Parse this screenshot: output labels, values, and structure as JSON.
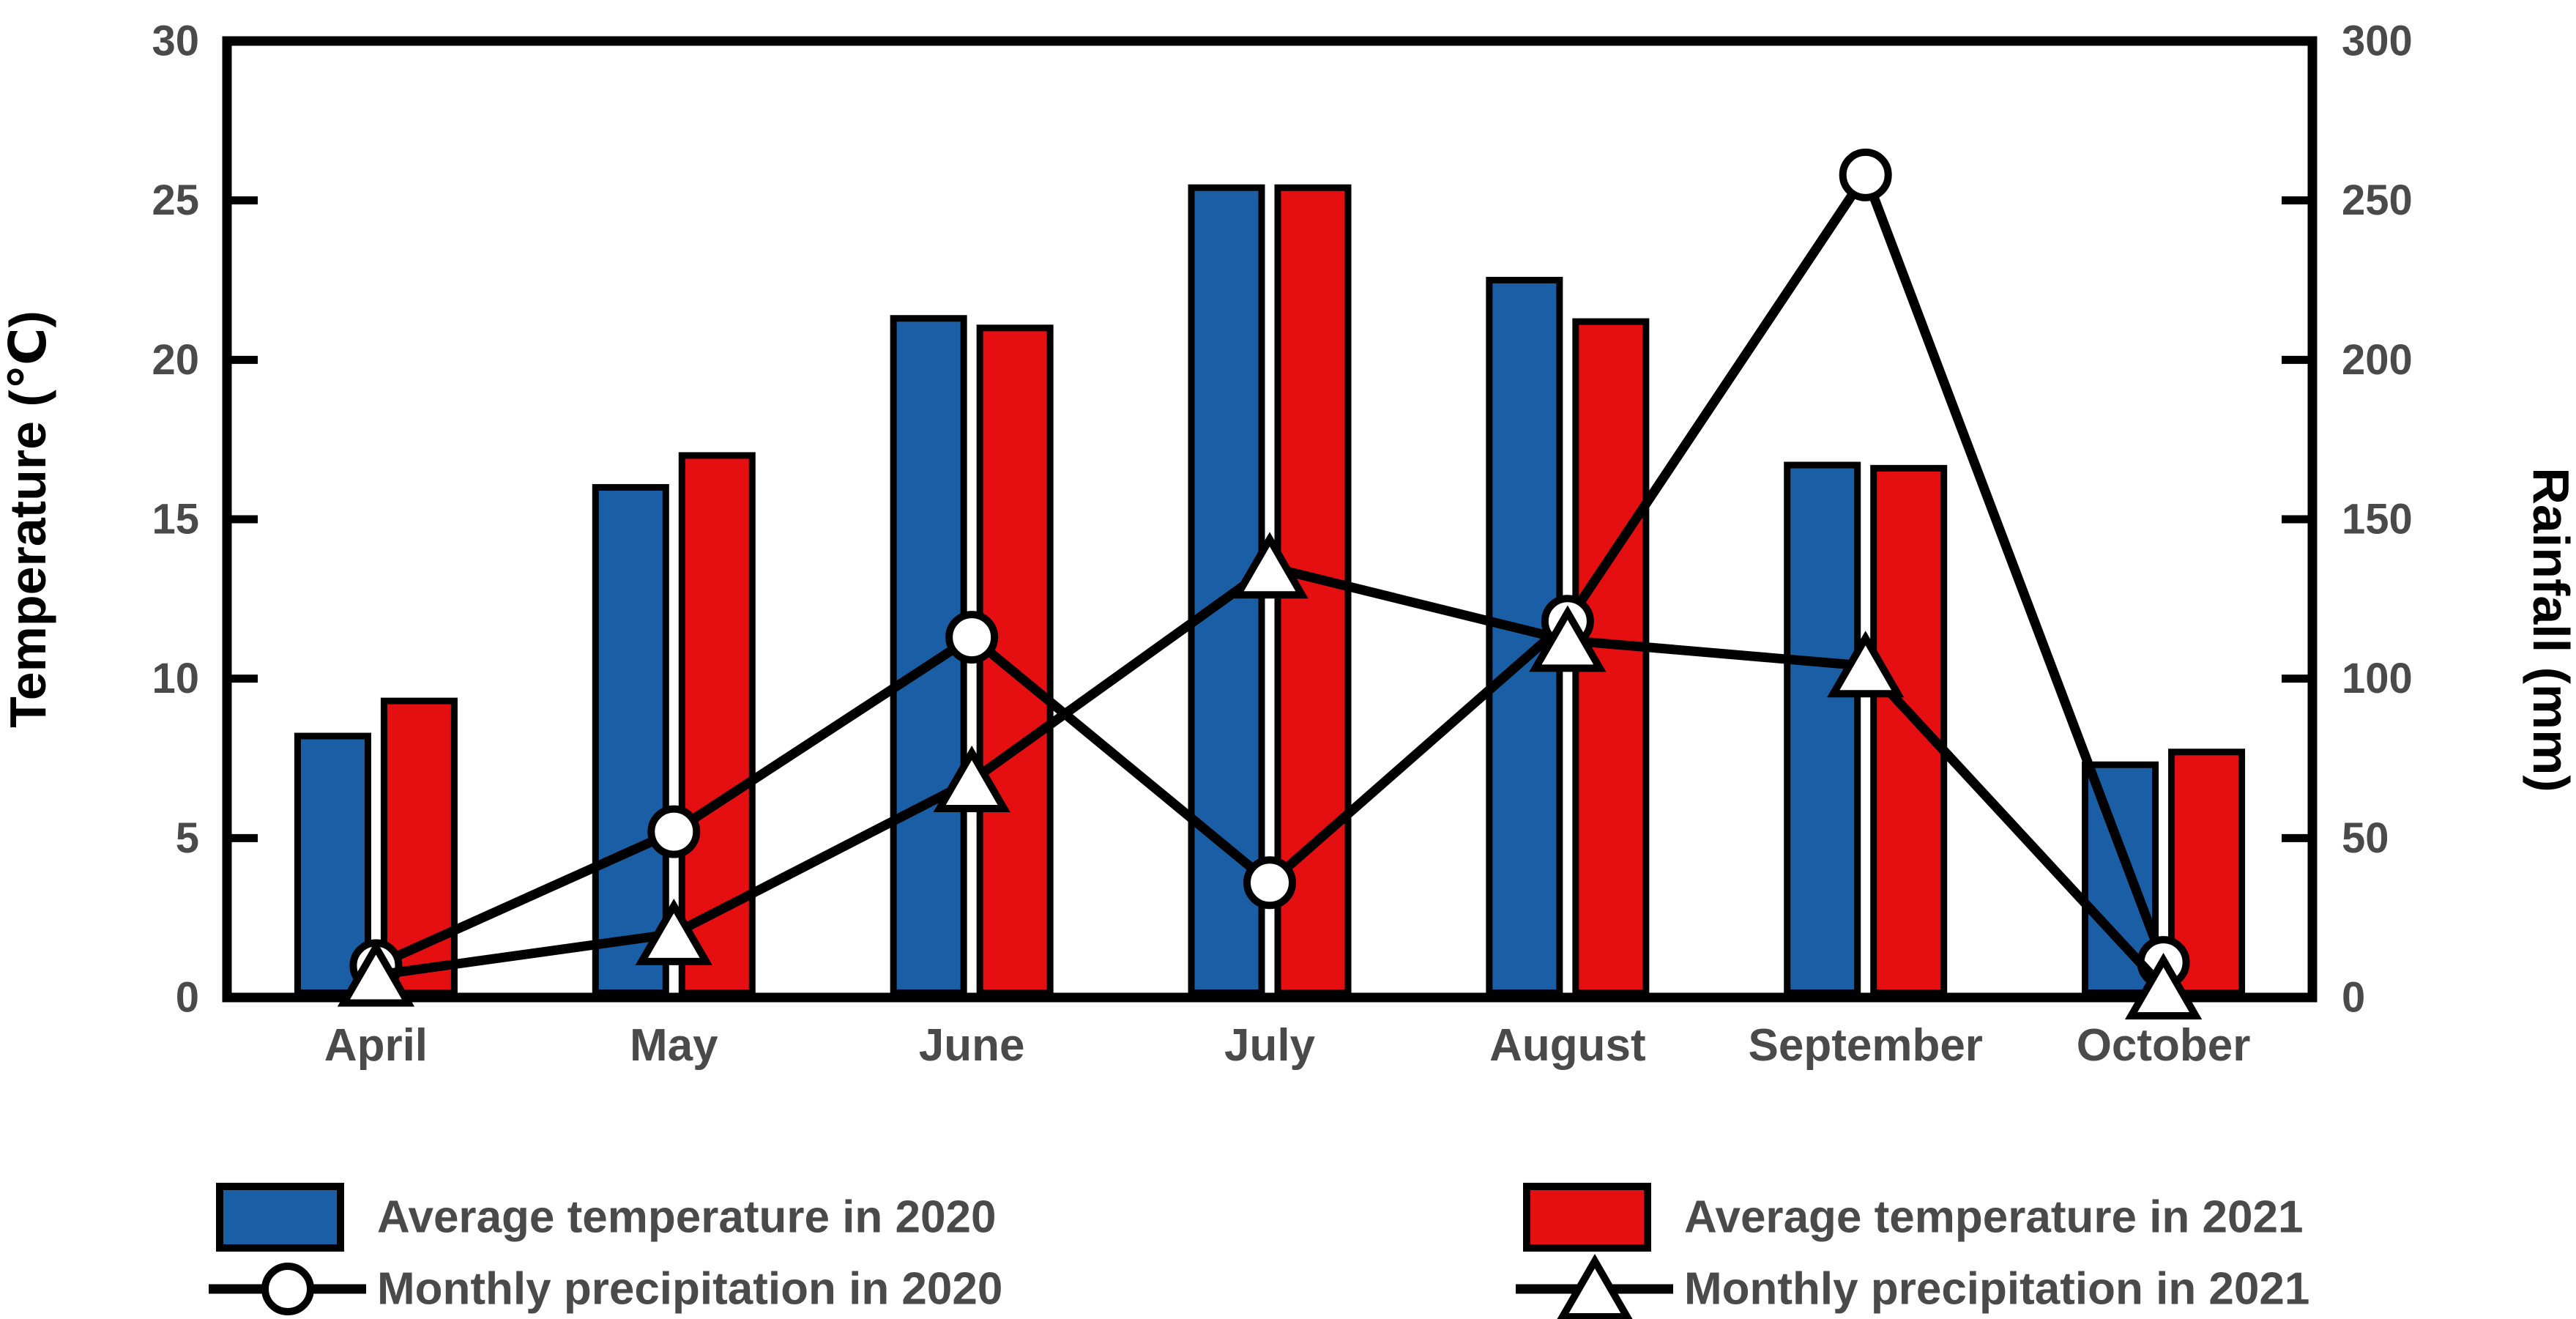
{
  "chart_data": {
    "type": "bar",
    "subtype": "combo-bar-line-dual-axis",
    "categories": [
      "April",
      "May",
      "June",
      "July",
      "August",
      "September",
      "October"
    ],
    "series": [
      {
        "name": "Average temperature in 2020",
        "type": "bar",
        "axis": "left",
        "color": "#1A5FA6",
        "values": [
          8.2,
          16.0,
          21.3,
          25.4,
          22.5,
          16.7,
          7.3
        ]
      },
      {
        "name": "Average temperature in 2021",
        "type": "bar",
        "axis": "left",
        "color": "#E50E11",
        "values": [
          9.3,
          17.0,
          21.0,
          25.4,
          21.2,
          16.6,
          7.7
        ]
      },
      {
        "name": "Monthly precipitation in 2020",
        "type": "line",
        "marker": "circle",
        "axis": "right",
        "color": "#000000",
        "values": [
          10,
          52,
          113,
          36,
          118,
          258,
          11
        ]
      },
      {
        "name": "Monthly precipitation in 2021",
        "type": "line",
        "marker": "triangle",
        "axis": "right",
        "color": "#000000",
        "values": [
          7,
          20,
          68,
          135,
          112,
          104,
          3
        ]
      }
    ],
    "left_axis": {
      "title": "Temperature (℃)",
      "min": 0,
      "max": 30,
      "step": 5,
      "tick_labels": [
        "0",
        "5",
        "10",
        "15",
        "20",
        "25",
        "30"
      ]
    },
    "right_axis": {
      "title": "Rainfall (mm)",
      "min": 0,
      "max": 300,
      "step": 50,
      "tick_labels": [
        "0",
        "50",
        "100",
        "150",
        "200",
        "250",
        "300"
      ]
    },
    "legend": {
      "position": "bottom",
      "entries": [
        {
          "label": "Average temperature in 2020",
          "swatch": "bar",
          "color": "#1A5FA6"
        },
        {
          "label": "Average temperature in 2021",
          "swatch": "bar",
          "color": "#E50E11"
        },
        {
          "label": "Monthly precipitation in 2020",
          "swatch": "line-circle",
          "color": "#000000"
        },
        {
          "label": "Monthly precipitation in 2021",
          "swatch": "line-triangle",
          "color": "#000000"
        }
      ]
    },
    "grid": false,
    "text_color": "#4a4a4a",
    "axis_color": "#000000"
  }
}
